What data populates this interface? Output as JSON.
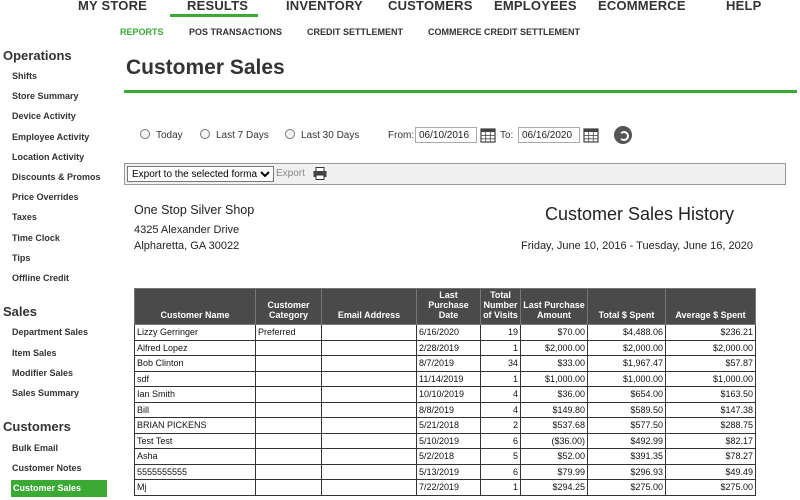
{
  "top_nav": [
    "MY STORE",
    "RESULTS",
    "INVENTORY",
    "CUSTOMERS",
    "EMPLOYEES",
    "ECOMMERCE",
    "HELP"
  ],
  "sub_nav": [
    "REPORTS",
    "POS TRANSACTIONS",
    "CREDIT SETTLEMENT",
    "COMMERCE CREDIT SETTLEMENT"
  ],
  "sidebar": {
    "operations": {
      "heading": "Operations",
      "links": [
        "Shifts",
        "Store Summary",
        "Device Activity",
        "Employee Activity",
        "Location Activity",
        "Discounts & Promos",
        "Price Overrides",
        "Taxes",
        "Time Clock",
        "Tips",
        "Offline Credit"
      ]
    },
    "sales": {
      "heading": "Sales",
      "links": [
        "Department Sales",
        "Item Sales",
        "Modifier Sales",
        "Sales Summary"
      ]
    },
    "customers": {
      "heading": "Customers",
      "links": [
        "Bulk Email",
        "Customer Notes",
        "Customer Sales"
      ]
    }
  },
  "page_title": "Customer Sales",
  "filters": {
    "today": "Today",
    "last7": "Last 7 Days",
    "last30": "Last 30 Days",
    "from_label": "From:",
    "from_value": "06/10/2016",
    "to_label": "To:",
    "to_value": "06/16/2020"
  },
  "toolbar": {
    "export_option": "Export to the selected format",
    "export_label": "Export"
  },
  "store": {
    "name": "One Stop Silver Shop",
    "address1": "4325 Alexander Drive",
    "address2": "Alpharetta, GA 30022"
  },
  "report": {
    "title": "Customer Sales History",
    "range": "Friday, June 10, 2016 - Tuesday, June 16, 2020"
  },
  "table": {
    "headers": {
      "name": "Customer Name",
      "category": "Customer Category",
      "email": "Email Address",
      "last_purchase_date": "Last Purchase Date",
      "visits": "Total Number of Visits",
      "last_purchase_amount": "Last Purchase Amount",
      "total_spent": "Total $ Spent",
      "avg_spent": "Average $ Spent"
    },
    "rows": [
      {
        "name": "Lizzy Gerringer",
        "category": "Preferred",
        "email": "",
        "date": "6/16/2020",
        "visits": "19",
        "last_amount": "$70.00",
        "total": "$4,488.06",
        "avg": "$236.21"
      },
      {
        "name": "Alfred Lopez",
        "category": "",
        "email": "",
        "date": "2/28/2019",
        "visits": "1",
        "last_amount": "$2,000.00",
        "total": "$2,000.00",
        "avg": "$2,000.00"
      },
      {
        "name": "Bob Clinton",
        "category": "",
        "email": "",
        "date": "8/7/2019",
        "visits": "34",
        "last_amount": "$33.00",
        "total": "$1,967.47",
        "avg": "$57.87"
      },
      {
        "name": "sdf",
        "category": "",
        "email": "",
        "date": "11/14/2019",
        "visits": "1",
        "last_amount": "$1,000.00",
        "total": "$1,000.00",
        "avg": "$1,000.00"
      },
      {
        "name": "Ian Smith",
        "category": "",
        "email": "",
        "date": "10/10/2019",
        "visits": "4",
        "last_amount": "$36.00",
        "total": "$654.00",
        "avg": "$163.50"
      },
      {
        "name": "Bill",
        "category": "",
        "email": "",
        "date": "8/8/2019",
        "visits": "4",
        "last_amount": "$149.80",
        "total": "$589.50",
        "avg": "$147.38"
      },
      {
        "name": "BRIAN PICKENS",
        "category": "",
        "email": "",
        "date": "5/21/2018",
        "visits": "2",
        "last_amount": "$537.68",
        "total": "$577.50",
        "avg": "$288.75"
      },
      {
        "name": "Test Test",
        "category": "",
        "email": "",
        "date": "5/10/2019",
        "visits": "6",
        "last_amount": "($36.00)",
        "total": "$492.99",
        "avg": "$82.17"
      },
      {
        "name": "Asha",
        "category": "",
        "email": "",
        "date": "5/2/2018",
        "visits": "5",
        "last_amount": "$52.00",
        "total": "$391.35",
        "avg": "$78.27"
      },
      {
        "name": "5555555555",
        "category": "",
        "email": "",
        "date": "5/13/2019",
        "visits": "6",
        "last_amount": "$79.99",
        "total": "$296.93",
        "avg": "$49.49"
      },
      {
        "name": "Mj",
        "category": "",
        "email": "",
        "date": "7/22/2019",
        "visits": "1",
        "last_amount": "$294.25",
        "total": "$275.00",
        "avg": "$275.00"
      }
    ]
  },
  "colors": {
    "accent": "#3aaa35",
    "header_bg": "#4a4a4a"
  }
}
